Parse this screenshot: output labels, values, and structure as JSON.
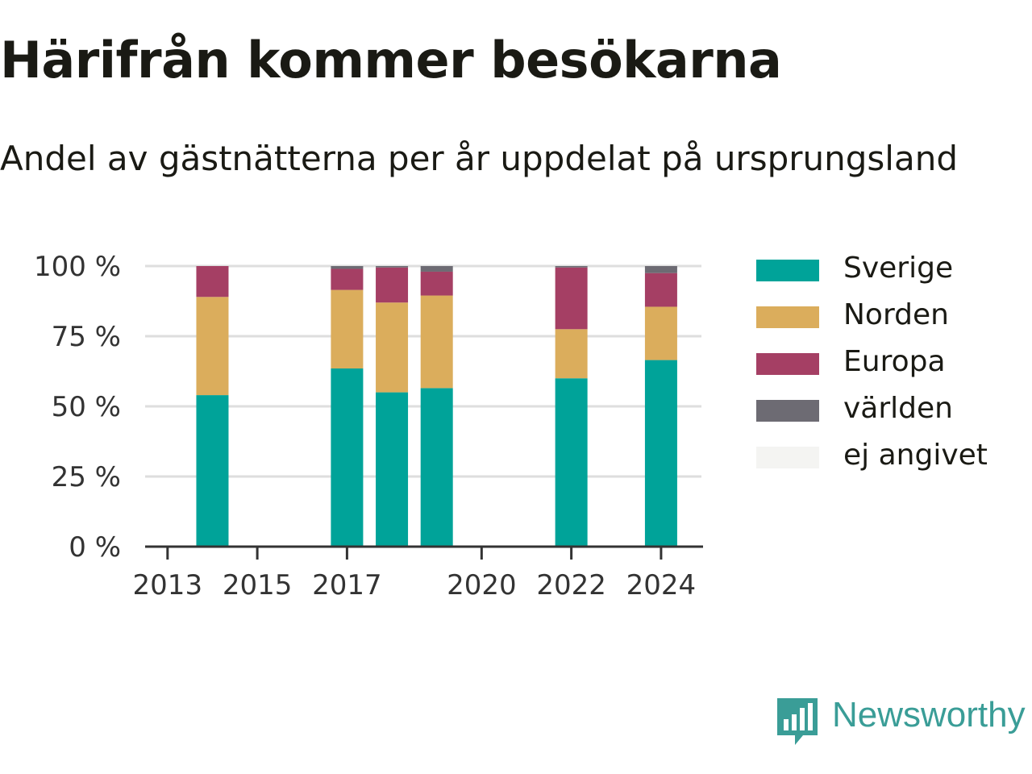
{
  "header": {
    "title": "Härifrån kommer besökarna",
    "subtitle": "Andel av gästnätterna per år uppdelat på ursprungsland"
  },
  "brand": {
    "name": "Newsworthy",
    "icon": "newsworthy-chart-bubble-icon",
    "color": "#3a9d97"
  },
  "chart_data": {
    "type": "bar",
    "stacked": true,
    "x": [
      2014,
      2017,
      2018,
      2019,
      2022,
      2024
    ],
    "xlim": [
      2012.5,
      2024.9
    ],
    "xticks": [
      "2013",
      "2015",
      "2017",
      "2020",
      "2022",
      "2024"
    ],
    "ylim": [
      0,
      100
    ],
    "yticks": [
      "0 %",
      "25 %",
      "50 %",
      "75 %",
      "100 %"
    ],
    "grid": true,
    "legend_position": "right",
    "series": [
      {
        "name": "Sverige",
        "color": "#00a399",
        "values": [
          54,
          63.5,
          55,
          56.5,
          60,
          66.5
        ]
      },
      {
        "name": "Norden",
        "color": "#dbad5c",
        "values": [
          35,
          28,
          32,
          33,
          17.5,
          19
        ]
      },
      {
        "name": "Europa",
        "color": "#a53f64",
        "values": [
          11,
          7.5,
          12.5,
          8.5,
          22,
          12
        ]
      },
      {
        "name": "världen",
        "color": "#6d6b73",
        "values": [
          0,
          1,
          0.5,
          2,
          0.5,
          2.5
        ]
      },
      {
        "name": "ej angivet",
        "color": "#f4f4f2",
        "values": [
          0,
          0,
          0,
          0,
          0,
          0
        ]
      }
    ]
  }
}
